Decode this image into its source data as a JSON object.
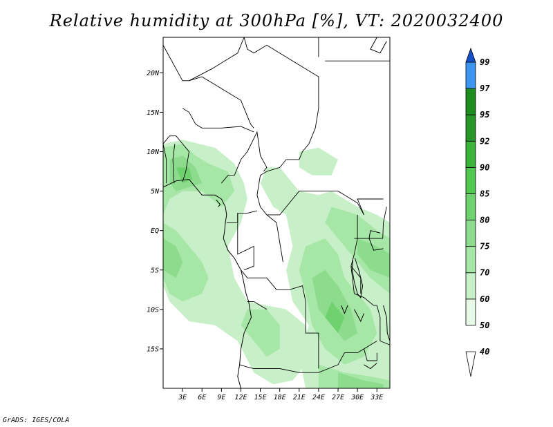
{
  "title": "Relative humidity at 300hPa [%], VT: 2020032400",
  "footer": "GrADS: IGES/COLA",
  "map": {
    "lon_range": [
      0,
      35
    ],
    "lat_range": [
      -20,
      24.5
    ],
    "lat_ticks": [
      {
        "value": 20,
        "label": "20N"
      },
      {
        "value": 15,
        "label": "15N"
      },
      {
        "value": 10,
        "label": "10N"
      },
      {
        "value": 5,
        "label": "5N"
      },
      {
        "value": 0,
        "label": "EQ"
      },
      {
        "value": -5,
        "label": "5S"
      },
      {
        "value": -10,
        "label": "10S"
      },
      {
        "value": -15,
        "label": "15S"
      }
    ],
    "lon_ticks": [
      {
        "value": 3,
        "label": "3E"
      },
      {
        "value": 6,
        "label": "6E"
      },
      {
        "value": 9,
        "label": "9E"
      },
      {
        "value": 12,
        "label": "12E"
      },
      {
        "value": 15,
        "label": "15E"
      },
      {
        "value": 18,
        "label": "18E"
      },
      {
        "value": 21,
        "label": "21E"
      },
      {
        "value": 24,
        "label": "24E"
      },
      {
        "value": 27,
        "label": "27E"
      },
      {
        "value": 30,
        "label": "30E"
      },
      {
        "value": 33,
        "label": "33E"
      }
    ]
  },
  "colorbar": {
    "levels": [
      "40",
      "50",
      "60",
      "70",
      "75",
      "80",
      "85",
      "90",
      "92",
      "95",
      "97",
      "99"
    ],
    "colors": [
      "#ffffff",
      "#e6fae6",
      "#c8f0c8",
      "#a6e6a6",
      "#8ddc8d",
      "#6fd26f",
      "#52c852",
      "#3cb43c",
      "#289628",
      "#1e8c1e",
      "#3c96f0",
      "#1e6ee6",
      "#1450c8"
    ]
  },
  "humidity_areas": [
    {
      "level": "50",
      "pts": [
        [
          0,
          11
        ],
        [
          3,
          11.5
        ],
        [
          8,
          10.5
        ],
        [
          11,
          8.5
        ],
        [
          12.5,
          6
        ],
        [
          13,
          4
        ],
        [
          12,
          1
        ],
        [
          10,
          -2
        ],
        [
          11,
          -6
        ],
        [
          13,
          -9
        ],
        [
          16,
          -9.5
        ],
        [
          19,
          -10
        ],
        [
          22,
          -12
        ],
        [
          23,
          -16
        ],
        [
          20,
          -19
        ],
        [
          17,
          -19.5
        ],
        [
          14,
          -18
        ],
        [
          11.5,
          -14
        ],
        [
          8,
          -12
        ],
        [
          4,
          -11.5
        ],
        [
          1,
          -9
        ],
        [
          0,
          -7
        ]
      ]
    },
    {
      "level": "50",
      "pts": [
        [
          19,
          7
        ],
        [
          21,
          5
        ],
        [
          24,
          4.5
        ],
        [
          26,
          5
        ],
        [
          30,
          3
        ],
        [
          33,
          2
        ],
        [
          35,
          1
        ],
        [
          35,
          -20
        ],
        [
          22,
          -20
        ],
        [
          21,
          -16
        ],
        [
          22.5,
          -12
        ],
        [
          20,
          -9
        ],
        [
          19,
          -5
        ],
        [
          20,
          -2
        ],
        [
          19,
          2
        ],
        [
          17,
          3
        ],
        [
          15,
          6
        ],
        [
          16,
          8
        ],
        [
          18,
          8
        ]
      ]
    },
    {
      "level": "50",
      "pts": [
        [
          21,
          10
        ],
        [
          24,
          10.5
        ],
        [
          27,
          9
        ],
        [
          26,
          7
        ],
        [
          23,
          7
        ],
        [
          21,
          8
        ]
      ]
    },
    {
      "level": "60",
      "pts": [
        [
          0,
          10.5
        ],
        [
          3,
          11
        ],
        [
          5,
          9.5
        ],
        [
          7,
          8.5
        ],
        [
          10,
          7.5
        ],
        [
          11,
          5
        ],
        [
          9,
          3
        ],
        [
          6,
          5
        ],
        [
          3,
          5
        ],
        [
          1,
          4
        ],
        [
          0,
          2
        ]
      ]
    },
    {
      "level": "60",
      "pts": [
        [
          0,
          1
        ],
        [
          2,
          0
        ],
        [
          4,
          -2
        ],
        [
          6,
          -4
        ],
        [
          7,
          -6
        ],
        [
          6,
          -8
        ],
        [
          3,
          -9
        ],
        [
          1,
          -8
        ],
        [
          0,
          -6
        ]
      ]
    },
    {
      "level": "60",
      "pts": [
        [
          13,
          -10
        ],
        [
          16,
          -10
        ],
        [
          18,
          -12
        ],
        [
          18,
          -15
        ],
        [
          16,
          -16
        ],
        [
          14,
          -14
        ],
        [
          12,
          -12
        ]
      ]
    },
    {
      "level": "60",
      "pts": [
        [
          22,
          -2
        ],
        [
          25,
          -1
        ],
        [
          27,
          -3
        ],
        [
          28,
          -6
        ],
        [
          30,
          -8
        ],
        [
          32,
          -10
        ],
        [
          33,
          -13
        ],
        [
          31,
          -16
        ],
        [
          28,
          -17
        ],
        [
          25,
          -15
        ],
        [
          23,
          -12
        ],
        [
          22,
          -8
        ],
        [
          21,
          -5
        ]
      ]
    },
    {
      "level": "60",
      "pts": [
        [
          26,
          3
        ],
        [
          30,
          2
        ],
        [
          33,
          0
        ],
        [
          35,
          -1
        ],
        [
          35,
          -8
        ],
        [
          32,
          -6
        ],
        [
          29,
          -3
        ],
        [
          27,
          -1
        ],
        [
          25,
          1
        ]
      ]
    },
    {
      "level": "60",
      "pts": [
        [
          24,
          -17
        ],
        [
          28,
          -18
        ],
        [
          32,
          -18.5
        ],
        [
          35,
          -19
        ],
        [
          35,
          -20
        ],
        [
          24,
          -20
        ]
      ]
    },
    {
      "level": "70",
      "pts": [
        [
          1,
          9
        ],
        [
          3,
          9.5
        ],
        [
          5,
          8
        ],
        [
          6,
          6
        ],
        [
          4,
          5.5
        ],
        [
          2,
          5
        ],
        [
          1,
          6
        ]
      ]
    },
    {
      "level": "70",
      "pts": [
        [
          0,
          -1
        ],
        [
          2,
          -2
        ],
        [
          3,
          -4
        ],
        [
          2,
          -6
        ],
        [
          0,
          -5
        ]
      ]
    },
    {
      "level": "70",
      "pts": [
        [
          23,
          -6
        ],
        [
          25,
          -5
        ],
        [
          27,
          -7
        ],
        [
          29,
          -10
        ],
        [
          30,
          -13
        ],
        [
          28,
          -14
        ],
        [
          26,
          -12
        ],
        [
          24,
          -10
        ]
      ]
    },
    {
      "level": "70",
      "pts": [
        [
          30,
          -1
        ],
        [
          33,
          -2
        ],
        [
          35,
          -3
        ],
        [
          35,
          -6
        ],
        [
          32,
          -5
        ],
        [
          30,
          -3
        ]
      ]
    },
    {
      "level": "70",
      "pts": [
        [
          27,
          -18
        ],
        [
          31,
          -19
        ],
        [
          34,
          -19.5
        ],
        [
          34,
          -20
        ],
        [
          27,
          -20
        ]
      ]
    },
    {
      "level": "75",
      "pts": [
        [
          2,
          8
        ],
        [
          4,
          8
        ],
        [
          4.5,
          6.5
        ],
        [
          3,
          6
        ]
      ]
    },
    {
      "level": "75",
      "pts": [
        [
          26,
          -9
        ],
        [
          28,
          -11
        ],
        [
          27,
          -13
        ],
        [
          25,
          -11
        ]
      ]
    }
  ],
  "borders": [
    [
      [
        12.5,
        24.5
      ],
      [
        13,
        23
      ],
      [
        14,
        22.5
      ],
      [
        16,
        23.5
      ],
      [
        20,
        21.5
      ],
      [
        24,
        19.5
      ],
      [
        24,
        15.5
      ],
      [
        23.5,
        13
      ],
      [
        22.5,
        11
      ],
      [
        21.5,
        10
      ],
      [
        21,
        9
      ],
      [
        19,
        9
      ],
      [
        18,
        8
      ],
      [
        16,
        7.5
      ],
      [
        15,
        7
      ],
      [
        14.5,
        4.5
      ],
      [
        15,
        3
      ],
      [
        16,
        2
      ],
      [
        18,
        2
      ],
      [
        19,
        3
      ],
      [
        21,
        5
      ],
      [
        24,
        5
      ],
      [
        27,
        5
      ],
      [
        28,
        4.5
      ],
      [
        30,
        3.5
      ],
      [
        31,
        2
      ]
    ],
    [
      [
        0,
        23.5
      ],
      [
        3,
        19
      ],
      [
        4,
        19
      ],
      [
        6,
        19.5
      ],
      [
        8,
        18.5
      ],
      [
        12,
        16.5
      ],
      [
        13.5,
        13.5
      ],
      [
        14,
        13
      ]
    ],
    [
      [
        12.5,
        24.5
      ],
      [
        11.5,
        22.5
      ],
      [
        9.5,
        21.5
      ],
      [
        7.5,
        20.5
      ],
      [
        4,
        19
      ]
    ],
    [
      [
        3,
        15.5
      ],
      [
        4,
        15
      ],
      [
        5,
        13.5
      ],
      [
        6,
        13
      ],
      [
        9,
        13
      ],
      [
        12,
        13.2
      ],
      [
        14,
        12.5
      ]
    ],
    [
      [
        0,
        11
      ],
      [
        1,
        12
      ],
      [
        2,
        12
      ],
      [
        3,
        11
      ],
      [
        4,
        10
      ],
      [
        3.5,
        7.5
      ],
      [
        3,
        6.2
      ]
    ],
    [
      [
        1.8,
        11
      ],
      [
        1.5,
        9
      ],
      [
        1.7,
        6
      ]
    ],
    [
      [
        0,
        11
      ],
      [
        0.5,
        9
      ],
      [
        0.5,
        6
      ]
    ],
    [
      [
        9,
        6
      ],
      [
        10,
        7
      ],
      [
        11,
        7
      ],
      [
        12,
        9
      ],
      [
        13,
        10
      ],
      [
        14.5,
        12.5
      ],
      [
        15,
        9.5
      ],
      [
        16,
        8
      ],
      [
        15.5,
        7.5
      ]
    ],
    [
      [
        14.5,
        2.5
      ],
      [
        13,
        2.2
      ],
      [
        11.5,
        2.2
      ],
      [
        11.5,
        1
      ],
      [
        9.8,
        1
      ]
    ],
    [
      [
        11.5,
        2.2
      ],
      [
        11.5,
        -3
      ],
      [
        14,
        -2
      ],
      [
        14,
        -4.5
      ],
      [
        12.5,
        -5
      ]
    ],
    [
      [
        16,
        2
      ],
      [
        17.5,
        1
      ],
      [
        18.5,
        -4
      ]
    ],
    [
      [
        12,
        -5
      ],
      [
        13,
        -6
      ],
      [
        16,
        -6
      ],
      [
        17.5,
        -7.5
      ],
      [
        19.5,
        -7.5
      ],
      [
        21.5,
        -7
      ],
      [
        22,
        -9
      ],
      [
        22,
        -13
      ],
      [
        24,
        -13
      ],
      [
        24,
        -17.5
      ]
    ],
    [
      [
        13,
        -9
      ],
      [
        14,
        -9
      ],
      [
        16,
        -10
      ]
    ],
    [
      [
        11.8,
        -17
      ],
      [
        13,
        -17.3
      ],
      [
        14,
        -17.5
      ],
      [
        18,
        -17.5
      ],
      [
        21,
        -18
      ],
      [
        24,
        -18
      ],
      [
        25.5,
        -17.5
      ],
      [
        27,
        -17
      ],
      [
        28,
        -15.5
      ],
      [
        30,
        -15.5
      ],
      [
        33,
        -14
      ]
    ],
    [
      [
        30,
        2
      ],
      [
        30,
        -1
      ],
      [
        29.5,
        -3
      ],
      [
        29,
        -4.5
      ],
      [
        29.5,
        -8
      ],
      [
        31,
        -8.5
      ],
      [
        32.5,
        -9.5
      ],
      [
        33,
        -9.5
      ]
    ],
    [
      [
        33,
        -9.5
      ],
      [
        33.5,
        -11
      ],
      [
        33.5,
        -14
      ],
      [
        35,
        -14.5
      ]
    ],
    [
      [
        31,
        -15
      ],
      [
        31.5,
        -16.5
      ],
      [
        33,
        -16.5
      ],
      [
        33,
        -15.5
      ]
    ],
    [
      [
        24,
        24.5
      ],
      [
        24,
        22
      ]
    ],
    [
      [
        25,
        21.5
      ],
      [
        35,
        21.5
      ]
    ],
    [
      [
        31,
        2
      ],
      [
        30,
        4
      ],
      [
        31,
        4
      ],
      [
        34,
        4
      ]
    ],
    [
      [
        29.5,
        -1
      ],
      [
        31,
        -1
      ],
      [
        33.9,
        -1
      ]
    ],
    [
      [
        33.9,
        -1
      ],
      [
        34,
        1
      ],
      [
        34.5,
        3
      ]
    ],
    [
      [
        29,
        -4.5
      ],
      [
        30.5,
        -6
      ],
      [
        30.5,
        -8
      ]
    ]
  ],
  "coastlines": [
    [
      [
        0,
        5.5
      ],
      [
        2,
        6.3
      ],
      [
        4,
        6.5
      ],
      [
        5,
        5.5
      ],
      [
        6,
        4.5
      ],
      [
        7,
        4.5
      ],
      [
        8,
        4.5
      ],
      [
        9,
        4
      ],
      [
        9.6,
        3
      ],
      [
        9.8,
        2
      ],
      [
        9.6,
        1
      ],
      [
        9.5,
        0
      ],
      [
        9.3,
        -1
      ],
      [
        10,
        -2.5
      ],
      [
        11,
        -3.5
      ],
      [
        12,
        -5
      ],
      [
        12.3,
        -6
      ],
      [
        12.8,
        -8
      ],
      [
        13.2,
        -9
      ],
      [
        13.6,
        -11
      ],
      [
        12.5,
        -13
      ],
      [
        12,
        -15
      ],
      [
        11.8,
        -17
      ],
      [
        11.5,
        -18.5
      ],
      [
        12,
        -20
      ]
    ],
    [
      [
        33.5,
        -0.3
      ],
      [
        32,
        0
      ],
      [
        31.8,
        -1
      ],
      [
        32.5,
        -2.5
      ],
      [
        34,
        -2.3
      ]
    ],
    [
      [
        29.3,
        -3.5
      ],
      [
        29.2,
        -5
      ],
      [
        29.5,
        -6.5
      ],
      [
        30,
        -8
      ],
      [
        30.5,
        -8.5
      ],
      [
        30.8,
        -7
      ],
      [
        30.2,
        -5
      ],
      [
        29.6,
        -3.5
      ]
    ],
    [
      [
        34,
        -9.5
      ],
      [
        34.5,
        -11
      ],
      [
        34.6,
        -13
      ],
      [
        35,
        -14
      ]
    ],
    [
      [
        29.5,
        -10
      ],
      [
        30.5,
        -11.5
      ],
      [
        31,
        -10.5
      ]
    ],
    [
      [
        27.5,
        -9.5
      ],
      [
        28,
        -10.5
      ],
      [
        28.5,
        -9.5
      ]
    ],
    [
      [
        8.2,
        3.9
      ],
      [
        8.8,
        3.3
      ],
      [
        8.5,
        3
      ]
    ],
    [
      [
        31,
        -17
      ],
      [
        32,
        -17.5
      ],
      [
        33,
        -16.8
      ]
    ],
    [
      [
        33,
        24.5
      ],
      [
        32,
        23
      ],
      [
        33.5,
        22.5
      ],
      [
        34.5,
        24
      ]
    ]
  ]
}
